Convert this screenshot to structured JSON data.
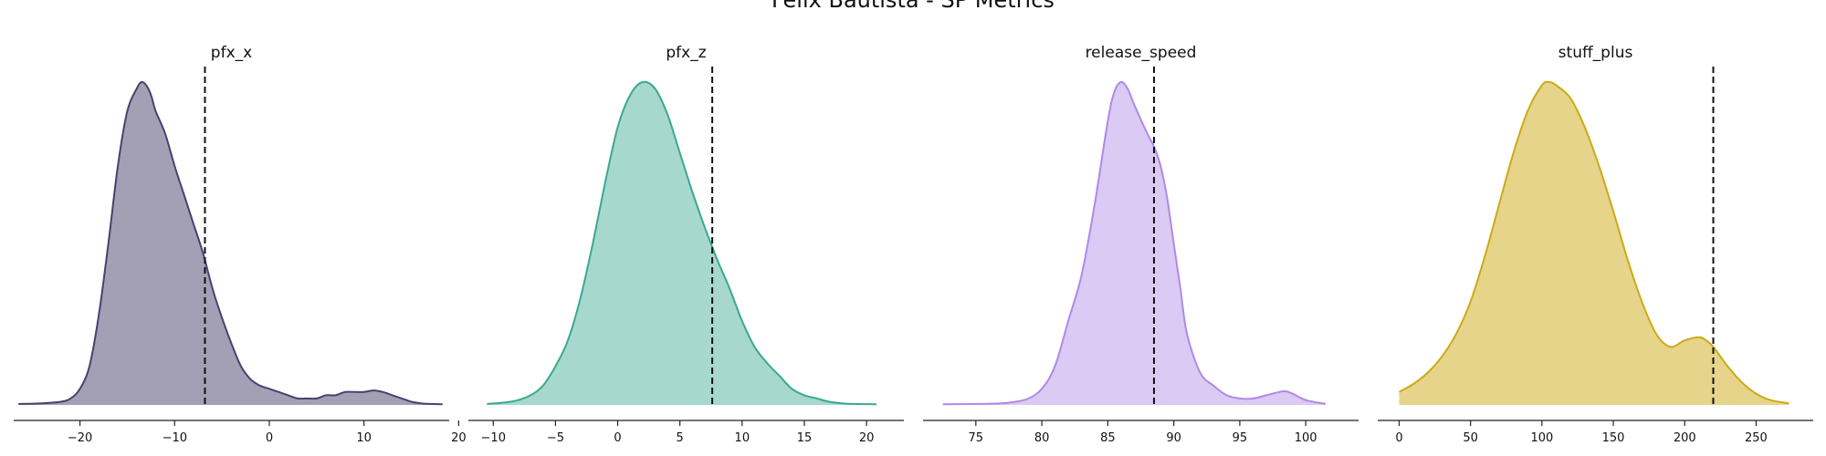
{
  "title": "Felix Bautista - SP Metrics",
  "chart_data": [
    {
      "type": "area",
      "title": "pfx_x",
      "color": "#47426e",
      "fill_alpha": 0.5,
      "xlim": [
        -27,
        19
      ],
      "xticks": [
        -20,
        -10,
        0,
        10,
        20
      ],
      "tick_labels": [
        "−20",
        "−10",
        "0",
        "10",
        "20"
      ],
      "reference_line": -6.8,
      "density": {
        "x": [
          -26.5,
          -24,
          -22,
          -21,
          -20,
          -19,
          -18,
          -17,
          -16,
          -15,
          -14,
          -13.5,
          -13,
          -12.5,
          -12,
          -11,
          -10,
          -9,
          -8,
          -7,
          -6,
          -5,
          -4,
          -3,
          -2,
          -1,
          0,
          1,
          2,
          3,
          4,
          5,
          6,
          7,
          8,
          9,
          10,
          11,
          12,
          13,
          14,
          15,
          16,
          17,
          18.3
        ],
        "y": [
          0.003,
          0.005,
          0.01,
          0.02,
          0.05,
          0.12,
          0.28,
          0.5,
          0.74,
          0.91,
          0.98,
          1.0,
          0.99,
          0.96,
          0.91,
          0.84,
          0.74,
          0.65,
          0.56,
          0.47,
          0.36,
          0.27,
          0.19,
          0.12,
          0.08,
          0.06,
          0.05,
          0.04,
          0.03,
          0.02,
          0.02,
          0.02,
          0.03,
          0.03,
          0.04,
          0.04,
          0.04,
          0.045,
          0.04,
          0.03,
          0.02,
          0.01,
          0.005,
          0.003,
          0.002
        ]
      }
    },
    {
      "type": "area",
      "title": "pfx_z",
      "color": "#3aa890",
      "fill_alpha": 0.45,
      "xlim": [
        -12,
        23
      ],
      "xticks": [
        -10,
        -5,
        0,
        5,
        10,
        15,
        20
      ],
      "tick_labels": [
        "−10",
        "−5",
        "0",
        "5",
        "10",
        "15",
        "20"
      ],
      "reference_line": 7.6,
      "density": {
        "x": [
          -10.5,
          -9,
          -8,
          -7,
          -6,
          -5,
          -4,
          -3,
          -2,
          -1,
          0,
          1,
          2,
          3,
          4,
          5,
          6,
          7,
          8,
          9,
          10,
          11,
          12,
          13,
          14,
          15,
          16,
          17,
          18,
          19,
          20.8
        ],
        "y": [
          0.003,
          0.008,
          0.015,
          0.03,
          0.06,
          0.12,
          0.2,
          0.33,
          0.5,
          0.69,
          0.86,
          0.96,
          1.0,
          0.98,
          0.9,
          0.78,
          0.66,
          0.55,
          0.45,
          0.36,
          0.26,
          0.18,
          0.13,
          0.09,
          0.05,
          0.03,
          0.02,
          0.01,
          0.005,
          0.003,
          0.002
        ]
      }
    },
    {
      "type": "area",
      "title": "release_speed",
      "color": "#b089e6",
      "fill_alpha": 0.45,
      "xlim": [
        71,
        104
      ],
      "xticks": [
        75,
        80,
        85,
        90,
        95,
        100
      ],
      "tick_labels": [
        "75",
        "80",
        "85",
        "90",
        "95",
        "100"
      ],
      "reference_line": 88.5,
      "density": {
        "x": [
          72.5,
          75,
          77,
          78,
          79,
          80,
          81,
          82,
          83,
          84,
          85,
          85.5,
          86,
          86.5,
          87,
          88,
          88.5,
          89,
          89.5,
          90,
          90.5,
          91,
          92,
          93,
          94,
          95,
          96,
          97,
          98,
          98.5,
          99,
          100,
          101.5
        ],
        "y": [
          0.002,
          0.003,
          0.005,
          0.01,
          0.02,
          0.05,
          0.12,
          0.26,
          0.4,
          0.62,
          0.88,
          0.97,
          1.0,
          0.98,
          0.93,
          0.84,
          0.8,
          0.74,
          0.64,
          0.5,
          0.36,
          0.22,
          0.1,
          0.06,
          0.03,
          0.02,
          0.02,
          0.03,
          0.04,
          0.042,
          0.035,
          0.015,
          0.003
        ]
      }
    },
    {
      "type": "area",
      "title": "stuff_plus",
      "color": "#cda916",
      "fill_alpha": 0.5,
      "xlim": [
        -15,
        290
      ],
      "xticks": [
        0,
        50,
        100,
        150,
        200,
        250
      ],
      "tick_labels": [
        "0",
        "50",
        "100",
        "150",
        "200",
        "250"
      ],
      "reference_line": 220,
      "density": {
        "x": [
          0,
          10,
          20,
          30,
          40,
          50,
          60,
          70,
          80,
          90,
          100,
          105,
          110,
          120,
          130,
          140,
          150,
          160,
          170,
          180,
          190,
          200,
          210,
          215,
          220,
          230,
          240,
          250,
          260,
          273
        ],
        "y": [
          0.04,
          0.065,
          0.1,
          0.15,
          0.22,
          0.32,
          0.46,
          0.62,
          0.78,
          0.91,
          0.99,
          1.0,
          0.99,
          0.95,
          0.86,
          0.74,
          0.6,
          0.45,
          0.32,
          0.22,
          0.18,
          0.2,
          0.21,
          0.2,
          0.18,
          0.12,
          0.07,
          0.035,
          0.015,
          0.005
        ]
      }
    }
  ]
}
